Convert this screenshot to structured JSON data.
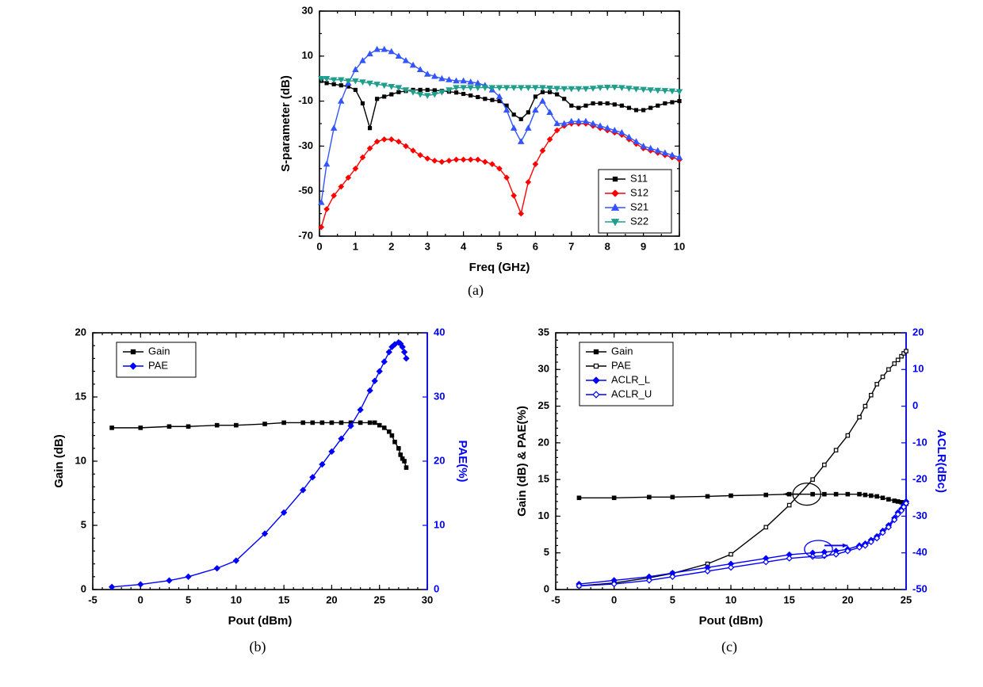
{
  "captions": {
    "a": "(a)",
    "b": "(b)",
    "c": "(c)"
  },
  "chartA": {
    "type": "line",
    "xlabel": "Freq (GHz)",
    "ylabel": "S-parameter (dB)",
    "xlim": [
      0,
      10
    ],
    "ylim": [
      -70,
      30
    ],
    "xtick_step": 1,
    "ytick_step": 20,
    "x_minor_step": 0.5,
    "y_minor_step": 10,
    "background_color": "#ffffff",
    "axis_color": "#000000",
    "tick_fontsize": 13,
    "label_fontsize": 15,
    "legend": {
      "position": "bottom-right",
      "items": [
        {
          "label": "S11",
          "color": "#000000",
          "marker": "square-filled"
        },
        {
          "label": "S12",
          "color": "#ff0000",
          "marker": "diamond-filled"
        },
        {
          "label": "S21",
          "color": "#3355ff",
          "marker": "triangle-up-filled"
        },
        {
          "label": "S22",
          "color": "#1f9e8c",
          "marker": "triangle-down-filled"
        }
      ]
    },
    "series": [
      {
        "name": "S11",
        "color": "#000000",
        "marker": "square-filled",
        "line_width": 1.4,
        "marker_size": 4.5,
        "x": [
          0.05,
          0.2,
          0.4,
          0.6,
          0.8,
          1.0,
          1.2,
          1.4,
          1.6,
          1.8,
          2.0,
          2.2,
          2.4,
          2.6,
          2.8,
          3.0,
          3.2,
          3.4,
          3.6,
          3.8,
          4.0,
          4.2,
          4.4,
          4.6,
          4.8,
          5.0,
          5.2,
          5.4,
          5.6,
          5.8,
          6.0,
          6.2,
          6.4,
          6.6,
          6.8,
          7.0,
          7.2,
          7.4,
          7.6,
          7.8,
          8.0,
          8.2,
          8.4,
          8.6,
          8.8,
          9.0,
          9.2,
          9.4,
          9.6,
          9.8,
          10.0
        ],
        "y": [
          -1,
          -2,
          -2.5,
          -3,
          -3.5,
          -5,
          -11,
          -22,
          -9,
          -8,
          -7,
          -6,
          -5.5,
          -5,
          -5,
          -5,
          -5.2,
          -5.5,
          -5.8,
          -6.2,
          -6.8,
          -7.5,
          -8.2,
          -9,
          -9.5,
          -10,
          -12,
          -16,
          -18,
          -15,
          -8,
          -6,
          -6,
          -7,
          -9,
          -12,
          -13,
          -12,
          -11,
          -11,
          -11,
          -11.5,
          -12,
          -13,
          -14,
          -14,
          -13,
          -12,
          -11,
          -10.5,
          -10
        ]
      },
      {
        "name": "S12",
        "color": "#ff0000",
        "marker": "diamond-filled",
        "line_width": 1.4,
        "marker_size": 4.5,
        "x": [
          0.05,
          0.2,
          0.4,
          0.6,
          0.8,
          1.0,
          1.2,
          1.4,
          1.6,
          1.8,
          2.0,
          2.2,
          2.4,
          2.6,
          2.8,
          3.0,
          3.2,
          3.4,
          3.6,
          3.8,
          4.0,
          4.2,
          4.4,
          4.6,
          4.8,
          5.0,
          5.2,
          5.4,
          5.6,
          5.8,
          6.0,
          6.2,
          6.4,
          6.6,
          6.8,
          7.0,
          7.2,
          7.4,
          7.6,
          7.8,
          8.0,
          8.2,
          8.4,
          8.6,
          8.8,
          9.0,
          9.2,
          9.4,
          9.6,
          9.8,
          10.0
        ],
        "y": [
          -66,
          -58,
          -52,
          -48,
          -44,
          -40,
          -35,
          -31,
          -28,
          -27,
          -27,
          -28,
          -30,
          -32,
          -34,
          -35.5,
          -36.5,
          -37,
          -36.5,
          -36,
          -36,
          -36,
          -36,
          -37,
          -38,
          -40,
          -44,
          -52,
          -60,
          -46,
          -38,
          -32,
          -27,
          -23,
          -21,
          -20,
          -20,
          -20,
          -21,
          -22,
          -23,
          -24,
          -25,
          -27,
          -29,
          -31,
          -32,
          -33,
          -34,
          -35,
          -36
        ]
      },
      {
        "name": "S21",
        "color": "#3355ff",
        "marker": "triangle-up-filled",
        "line_width": 1.4,
        "marker_size": 4.5,
        "x": [
          0.05,
          0.2,
          0.4,
          0.6,
          0.8,
          1.0,
          1.2,
          1.4,
          1.6,
          1.8,
          2.0,
          2.2,
          2.4,
          2.6,
          2.8,
          3.0,
          3.2,
          3.4,
          3.6,
          3.8,
          4.0,
          4.2,
          4.4,
          4.6,
          4.8,
          5.0,
          5.2,
          5.4,
          5.6,
          5.8,
          6.0,
          6.2,
          6.4,
          6.6,
          6.8,
          7.0,
          7.2,
          7.4,
          7.6,
          7.8,
          8.0,
          8.2,
          8.4,
          8.6,
          8.8,
          9.0,
          9.2,
          9.4,
          9.6,
          9.8,
          10.0
        ],
        "y": [
          -55,
          -38,
          -22,
          -10,
          -2,
          4,
          8,
          11,
          13,
          13,
          12,
          10,
          8,
          6,
          4,
          2,
          1,
          0,
          -0.5,
          -1,
          -1,
          -1.5,
          -2,
          -3,
          -5,
          -8,
          -14,
          -22,
          -28,
          -22,
          -14,
          -10,
          -15,
          -20,
          -20,
          -19,
          -19,
          -19,
          -20,
          -21,
          -22,
          -23,
          -24,
          -26,
          -28,
          -30,
          -31,
          -32,
          -33,
          -34,
          -35
        ]
      },
      {
        "name": "S22",
        "color": "#1f9e8c",
        "marker": "triangle-down-filled",
        "line_width": 1.4,
        "marker_size": 4.5,
        "x": [
          0.05,
          0.2,
          0.4,
          0.6,
          0.8,
          1.0,
          1.2,
          1.4,
          1.6,
          1.8,
          2.0,
          2.2,
          2.4,
          2.6,
          2.8,
          3.0,
          3.2,
          3.4,
          3.6,
          3.8,
          4.0,
          4.2,
          4.4,
          4.6,
          4.8,
          5.0,
          5.2,
          5.4,
          5.6,
          5.8,
          6.0,
          6.2,
          6.4,
          6.6,
          6.8,
          7.0,
          7.2,
          7.4,
          7.6,
          7.8,
          8.0,
          8.2,
          8.4,
          8.6,
          8.8,
          9.0,
          9.2,
          9.4,
          9.6,
          9.8,
          10.0
        ],
        "y": [
          0,
          0,
          -0.5,
          -0.5,
          -1,
          -1,
          -1.5,
          -2,
          -2.5,
          -3,
          -3.5,
          -4,
          -5,
          -6,
          -7,
          -7.5,
          -7,
          -6,
          -5,
          -4,
          -4,
          -4,
          -4,
          -4,
          -4,
          -4,
          -4,
          -4,
          -4,
          -4,
          -4,
          -4,
          -4.2,
          -4.4,
          -4.5,
          -4.5,
          -4.5,
          -4.5,
          -4.3,
          -4,
          -3.8,
          -3.8,
          -4,
          -4.3,
          -4.6,
          -4.8,
          -5,
          -5.2,
          -5.3,
          -5.5,
          -5.8
        ]
      }
    ]
  },
  "chartB": {
    "type": "line",
    "xlabel": "Pout (dBm)",
    "ylabel_left": "Gain (dB)",
    "ylabel_right": "PAE(%)",
    "xlim": [
      -5,
      30
    ],
    "ylim_left": [
      0,
      20
    ],
    "ylim_right": [
      0,
      40
    ],
    "xtick_step": 5,
    "ytick_step_left": 5,
    "ytick_step_right": 10,
    "x_minor_step": 1,
    "y_minor_step_left": 1,
    "background_color": "#ffffff",
    "axis_color": "#000000",
    "axis_color_right": "#0000ff",
    "tick_fontsize": 13,
    "label_fontsize": 15,
    "legend": {
      "position": "top-left-inside",
      "items": [
        {
          "label": "Gain",
          "color": "#000000",
          "marker": "square-filled"
        },
        {
          "label": "PAE",
          "color": "#0000ff",
          "marker": "diamond-filled"
        }
      ]
    },
    "series_left": [
      {
        "name": "Gain",
        "color": "#000000",
        "marker": "square-filled",
        "line_width": 1.4,
        "marker_size": 5,
        "x": [
          -3,
          0,
          3,
          5,
          8,
          10,
          13,
          15,
          17,
          18,
          19,
          20,
          21,
          22,
          23,
          24,
          24.5,
          25,
          25.5,
          26,
          26.3,
          26.6,
          27,
          27.2,
          27.4,
          27.6,
          27.8
        ],
        "y": [
          12.6,
          12.6,
          12.7,
          12.7,
          12.8,
          12.8,
          12.9,
          13.0,
          13.0,
          13.0,
          13.0,
          13.0,
          13.0,
          13.0,
          13.0,
          13.0,
          13.0,
          12.8,
          12.6,
          12.3,
          12.0,
          11.5,
          11.0,
          10.5,
          10.2,
          10.0,
          9.5
        ]
      }
    ],
    "series_right": [
      {
        "name": "PAE",
        "color": "#0000ff",
        "marker": "diamond-filled",
        "line_width": 1.4,
        "marker_size": 5,
        "x": [
          -3,
          0,
          3,
          5,
          8,
          10,
          13,
          15,
          17,
          18,
          19,
          20,
          21,
          22,
          23,
          24,
          24.5,
          25,
          25.5,
          26,
          26.3,
          26.6,
          27,
          27.2,
          27.4,
          27.6,
          27.8
        ],
        "y": [
          0.4,
          0.8,
          1.4,
          2.0,
          3.3,
          4.5,
          8.7,
          12.0,
          15.5,
          17.5,
          19.5,
          21.5,
          23.5,
          25.5,
          28.0,
          31.0,
          32.5,
          34.0,
          35.5,
          37.0,
          37.8,
          38.2,
          38.5,
          38.3,
          37.8,
          37.0,
          36.0
        ]
      }
    ]
  },
  "chartC": {
    "type": "line",
    "xlabel": "Pout (dBm)",
    "ylabel_left": "Gain (dB) & PAE(%)",
    "ylabel_right": "ACLR(dBc)",
    "xlim": [
      -5,
      25
    ],
    "ylim_left": [
      0,
      35
    ],
    "ylim_right": [
      -50,
      20
    ],
    "xtick_step": 5,
    "ytick_step_left": 5,
    "ytick_step_right": 10,
    "x_minor_step": 1,
    "y_minor_step_left": 1,
    "background_color": "#ffffff",
    "axis_color": "#000000",
    "axis_color_right": "#0000ff",
    "tick_fontsize": 13,
    "label_fontsize": 15,
    "arrows": [
      {
        "from": [
          16,
          13
        ],
        "to": [
          14.5,
          13
        ],
        "color": "#000000",
        "ellipse": [
          16.5,
          13,
          1.2,
          1.5
        ]
      },
      {
        "from": [
          18,
          6
        ],
        "to": [
          20,
          6
        ],
        "color": "#0000ff",
        "ellipse": [
          17.5,
          5.5,
          1.2,
          1.2
        ]
      }
    ],
    "legend": {
      "position": "top-left-inside",
      "items": [
        {
          "label": "Gain",
          "color": "#000000",
          "marker": "square-filled"
        },
        {
          "label": "PAE",
          "color": "#000000",
          "marker": "square-open"
        },
        {
          "label": "ACLR_L",
          "color": "#0000ff",
          "marker": "diamond-filled"
        },
        {
          "label": "ACLR_U",
          "color": "#0000ff",
          "marker": "diamond-open"
        }
      ]
    },
    "series_left": [
      {
        "name": "Gain",
        "color": "#000000",
        "marker": "square-filled",
        "line_width": 1.4,
        "marker_size": 5,
        "x": [
          -3,
          0,
          3,
          5,
          8,
          10,
          13,
          15,
          17,
          18,
          19,
          20,
          21,
          21.5,
          22,
          22.5,
          23,
          23.5,
          24,
          24.3,
          24.6,
          24.8,
          25
        ],
        "y": [
          12.5,
          12.5,
          12.6,
          12.6,
          12.7,
          12.8,
          12.9,
          13.0,
          13.0,
          13.0,
          13.0,
          13.0,
          13.0,
          12.9,
          12.8,
          12.7,
          12.5,
          12.3,
          12.1,
          12.0,
          11.9,
          11.8,
          11.7
        ]
      },
      {
        "name": "PAE",
        "color": "#000000",
        "marker": "square-open",
        "line_width": 1.4,
        "marker_size": 5,
        "x": [
          -3,
          0,
          3,
          5,
          8,
          10,
          13,
          15,
          17,
          18,
          19,
          20,
          21,
          21.5,
          22,
          22.5,
          23,
          23.5,
          24,
          24.3,
          24.6,
          24.8,
          25
        ],
        "y": [
          0.5,
          0.9,
          1.6,
          2.2,
          3.5,
          4.8,
          8.5,
          11.5,
          15.0,
          17.0,
          19.0,
          21.0,
          23.5,
          25.0,
          26.5,
          28.0,
          29.0,
          30.0,
          30.8,
          31.3,
          31.8,
          32.2,
          32.5
        ]
      }
    ],
    "series_right": [
      {
        "name": "ACLR_L",
        "color": "#0000ff",
        "marker": "diamond-filled",
        "line_width": 1.4,
        "marker_size": 5,
        "x": [
          -3,
          0,
          3,
          5,
          8,
          10,
          13,
          15,
          17,
          18,
          19,
          20,
          21,
          21.5,
          22,
          22.5,
          23,
          23.5,
          24,
          24.3,
          24.6,
          24.8,
          25
        ],
        "y": [
          -48.5,
          -47.5,
          -46.5,
          -45.5,
          -44,
          -43,
          -41.5,
          -40.5,
          -40,
          -39.8,
          -39.5,
          -39,
          -38,
          -37.5,
          -36.5,
          -35.5,
          -34,
          -32.5,
          -30.5,
          -29,
          -28,
          -27,
          -26
        ]
      },
      {
        "name": "ACLR_U",
        "color": "#0000ff",
        "marker": "diamond-open",
        "line_width": 1.4,
        "marker_size": 5,
        "x": [
          -3,
          0,
          3,
          5,
          8,
          10,
          13,
          15,
          17,
          18,
          19,
          20,
          21,
          21.5,
          22,
          22.5,
          23,
          23.5,
          24,
          24.3,
          24.6,
          24.8,
          25
        ],
        "y": [
          -49,
          -48.5,
          -47.5,
          -46.5,
          -45,
          -44,
          -42.5,
          -41.5,
          -41,
          -40.8,
          -40.4,
          -39.5,
          -38.5,
          -38,
          -37,
          -36,
          -34.5,
          -33,
          -31,
          -29.5,
          -28.5,
          -27.5,
          -26.5
        ]
      }
    ]
  }
}
